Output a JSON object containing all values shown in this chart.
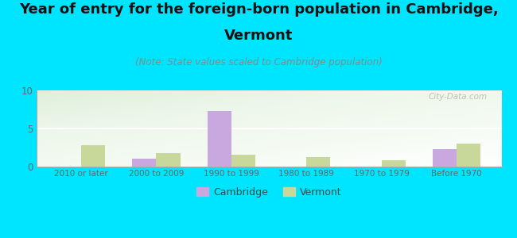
{
  "categories": [
    "2010 or later",
    "2000 to 2009",
    "1990 to 1999",
    "1980 to 1989",
    "1970 to 1979",
    "Before 1970"
  ],
  "cambridge_values": [
    0,
    1.0,
    7.3,
    0,
    0,
    2.3
  ],
  "vermont_values": [
    2.8,
    1.8,
    1.6,
    1.2,
    0.8,
    3.0
  ],
  "cambridge_color": "#c9a8e0",
  "vermont_color": "#c8d89a",
  "background_color": "#00e5ff",
  "plot_bg_color": "#f0f8ee",
  "title_line1": "Year of entry for the foreign-born population in Cambridge,",
  "title_line2": "Vermont",
  "subtitle": "(Note: State values scaled to Cambridge population)",
  "title_fontsize": 13,
  "subtitle_fontsize": 8.5,
  "ylim": [
    0,
    10
  ],
  "yticks": [
    0,
    5,
    10
  ],
  "bar_width": 0.32,
  "legend_labels": [
    "Cambridge",
    "Vermont"
  ],
  "watermark": "City-Data.com",
  "grid_color": "#ccddcc",
  "tick_color": "#666666",
  "spine_color": "#aaaaaa"
}
